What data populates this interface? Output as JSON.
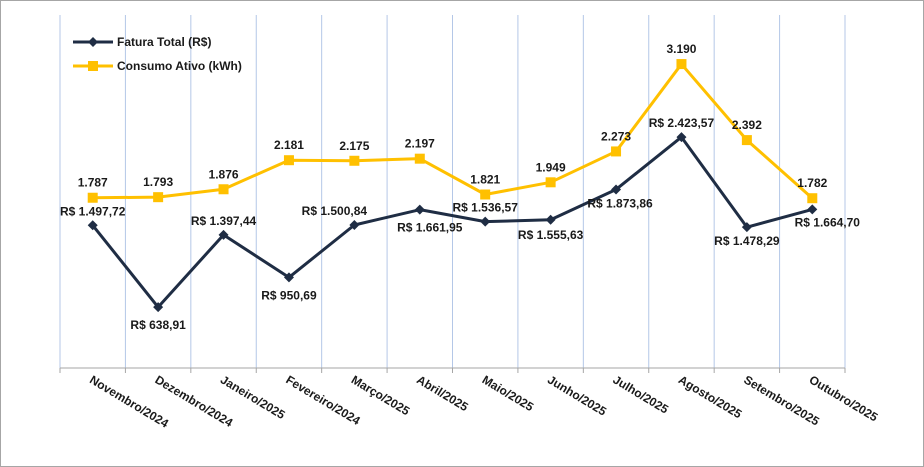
{
  "chart_data": {
    "type": "line",
    "title": "",
    "xlabel": "",
    "ylabel": "",
    "categories": [
      "Novembro/2024",
      "Dezembro/2024",
      "Janeiro/2025",
      "Fevereiro/2024",
      "Março/2025",
      "Abril/2025",
      "Maio/2025",
      "Junho/2025",
      "Julho/2025",
      "Agosto/2025",
      "Setembro/2025",
      "Outubro/2025"
    ],
    "series": [
      {
        "name": "Fatura Total (R$)",
        "color": "#1f2d44",
        "marker": "diamond",
        "values": [
          1497.72,
          638.91,
          1397.44,
          950.69,
          1500.84,
          1661.95,
          1536.57,
          1555.63,
          1873.86,
          2423.57,
          1478.29,
          1664.7
        ],
        "labels": [
          "R$ 1.497,72",
          "R$ 638,91",
          "R$ 1.397,44",
          "R$ 950,69",
          "R$ 1.500,84",
          "R$ 1.661,95",
          "R$ 1.536,57",
          "R$ 1.555,63",
          "R$ 1.873,86",
          "R$ 2.423,57",
          "R$ 1.478,29",
          "R$ 1.664,70"
        ],
        "ylim": [
          0,
          3600
        ]
      },
      {
        "name": "Consumo Ativo (kWh)",
        "color": "#ffc000",
        "marker": "square",
        "values": [
          1787,
          1793,
          1876,
          2181,
          2175,
          2197,
          1821,
          1949,
          2273,
          3190,
          2392,
          1782
        ],
        "labels": [
          "1.787",
          "1.793",
          "1.876",
          "2.181",
          "2.175",
          "2.197",
          "1.821",
          "1.949",
          "2.273",
          "3.190",
          "2.392",
          "1.782"
        ],
        "ylim": [
          0,
          3600
        ]
      }
    ],
    "grid": "vertical",
    "gridColor": "#b4c7e7",
    "legend": "top-left"
  }
}
